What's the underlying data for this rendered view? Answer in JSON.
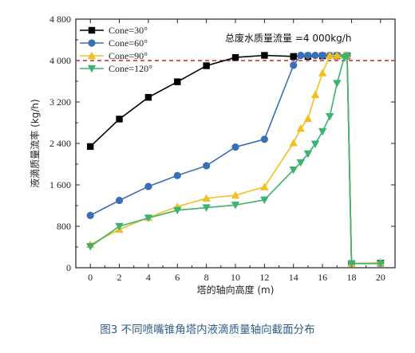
{
  "caption": "图3 不同喷嘴锥角塔内液滴质量轴向截面分布",
  "chart_data": {
    "type": "line",
    "xlabel": "塔的轴向高度 (m)",
    "ylabel": "液滴质量流率 (kg/h)",
    "xlim": [
      -1,
      21
    ],
    "ylim": [
      0,
      4800
    ],
    "x_ticks": [
      0,
      2,
      4,
      6,
      8,
      10,
      12,
      14,
      16,
      18,
      20
    ],
    "y_ticks": [
      0,
      800,
      1600,
      2400,
      3200,
      4000,
      4800
    ],
    "y_tick_labels": [
      "0",
      "800",
      "1 600",
      "2 400",
      "3 200",
      "4 000",
      "4 800"
    ],
    "grid": false,
    "legend_position": "top-left",
    "annotation": "总废水质量流量 =4 000kg/h",
    "reference_line": {
      "y": 4000,
      "color": "#dd2222",
      "style": "dashed"
    },
    "series": [
      {
        "name": "Cone=30°",
        "color": "#000000",
        "marker": "square",
        "x": [
          0,
          2,
          4,
          6,
          8,
          10,
          12,
          14,
          15,
          16,
          17,
          17.7,
          18,
          20
        ],
        "y": [
          2340,
          2870,
          3290,
          3590,
          3900,
          4060,
          4100,
          4080,
          4080,
          4090,
          4090,
          4090,
          80,
          90
        ]
      },
      {
        "name": "Cone=60°",
        "color": "#3a6fb5",
        "marker": "circle",
        "x": [
          0,
          2,
          4,
          6,
          8,
          10,
          12,
          14,
          14.5,
          15,
          15.5,
          16,
          16.5,
          17,
          17.7,
          18,
          20
        ],
        "y": [
          1010,
          1300,
          1570,
          1780,
          1970,
          2330,
          2480,
          3910,
          4100,
          4100,
          4100,
          4100,
          4100,
          4100,
          4100,
          80,
          90
        ]
      },
      {
        "name": "Cone=90°",
        "color": "#f0c020",
        "marker": "triangle-up",
        "x": [
          0,
          2,
          4,
          6,
          8,
          10,
          12,
          14,
          14.5,
          15,
          15.5,
          16,
          16.5,
          17,
          17.5,
          17.7,
          18,
          20
        ],
        "y": [
          450,
          740,
          970,
          1180,
          1340,
          1400,
          1560,
          2410,
          2690,
          2880,
          3340,
          3760,
          4100,
          4100,
          4100,
          4100,
          80,
          100
        ]
      },
      {
        "name": "Cone=120°",
        "color": "#3cb371",
        "marker": "triangle-down",
        "x": [
          0,
          2,
          4,
          6,
          8,
          10,
          12,
          14,
          14.5,
          15,
          15.5,
          16,
          16.5,
          17,
          17.5,
          17.7,
          18,
          20
        ],
        "y": [
          410,
          800,
          960,
          1110,
          1160,
          1210,
          1310,
          1890,
          2030,
          2200,
          2390,
          2630,
          2920,
          3560,
          4060,
          4080,
          80,
          80
        ]
      }
    ]
  }
}
